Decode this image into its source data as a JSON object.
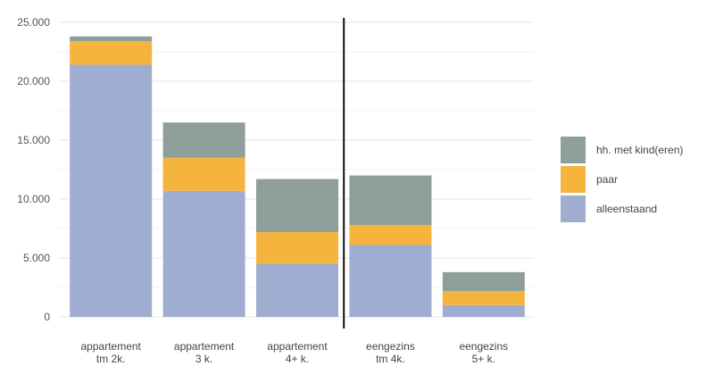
{
  "chart_data": {
    "type": "bar",
    "stacked": true,
    "categories": [
      [
        "appartement",
        "tm 2k."
      ],
      [
        "appartement",
        "3 k."
      ],
      [
        "appartement",
        "4+ k."
      ],
      [
        "eengezins",
        "tm 4k."
      ],
      [
        "eengezins",
        "5+ k."
      ]
    ],
    "series": [
      {
        "name": "alleenstaand",
        "color": "#9fadd0",
        "values": [
          21400,
          10700,
          4500,
          6100,
          1000
        ]
      },
      {
        "name": "paar",
        "color": "#f4b43e",
        "values": [
          2000,
          2800,
          2700,
          1700,
          1200
        ]
      },
      {
        "name": "hh. met kind(eren)",
        "color": "#8e9e9a",
        "values": [
          400,
          3000,
          4500,
          4200,
          1600
        ]
      }
    ],
    "yticks": [
      "0",
      "5.000",
      "10.000",
      "15.000",
      "20.000",
      "25.000"
    ],
    "ylim": [
      0,
      25000
    ],
    "grid": true,
    "legend_position": "right",
    "divider_after_category": 2
  }
}
